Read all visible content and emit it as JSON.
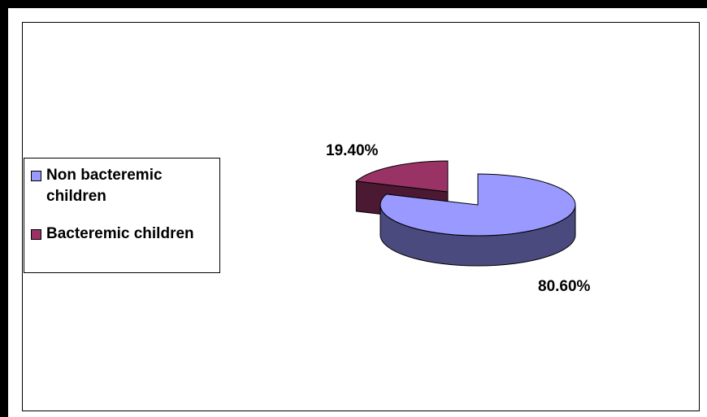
{
  "chart_data": {
    "type": "pie",
    "title": "",
    "series": [
      {
        "name": "Non bacteremic children",
        "value": 80.6,
        "label": "80.60%",
        "color": "#9999FF",
        "side_color": "#4A4A7F"
      },
      {
        "name": "Bacteremic children",
        "value": 19.4,
        "label": "19.40%",
        "color": "#993366",
        "side_color": "#4B1932"
      }
    ],
    "legend": "left",
    "style": "3d-exploded"
  }
}
